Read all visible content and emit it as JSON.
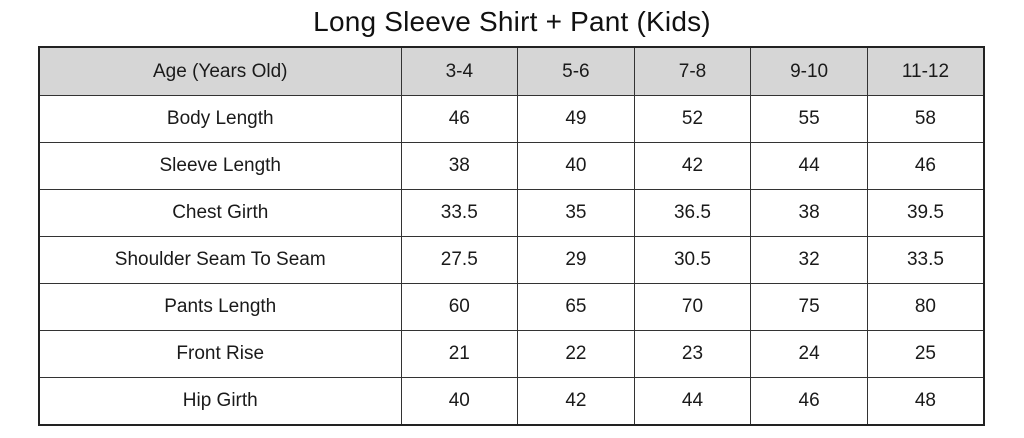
{
  "title": "Long Sleeve Shirt + Pant (Kids)",
  "table": {
    "headers": [
      "Age (Years Old)",
      "3-4",
      "5-6",
      "7-8",
      "9-10",
      "11-12"
    ],
    "rows": [
      [
        "Body Length",
        "46",
        "49",
        "52",
        "55",
        "58"
      ],
      [
        "Sleeve Length",
        "38",
        "40",
        "42",
        "44",
        "46"
      ],
      [
        "Chest Girth",
        "33.5",
        "35",
        "36.5",
        "38",
        "39.5"
      ],
      [
        "Shoulder Seam To Seam",
        "27.5",
        "29",
        "30.5",
        "32",
        "33.5"
      ],
      [
        "Pants Length",
        "60",
        "65",
        "70",
        "75",
        "80"
      ],
      [
        "Front Rise",
        "21",
        "22",
        "23",
        "24",
        "25"
      ],
      [
        "Hip Girth",
        "40",
        "42",
        "44",
        "46",
        "48"
      ]
    ],
    "header_background": "#d6d6d6"
  }
}
